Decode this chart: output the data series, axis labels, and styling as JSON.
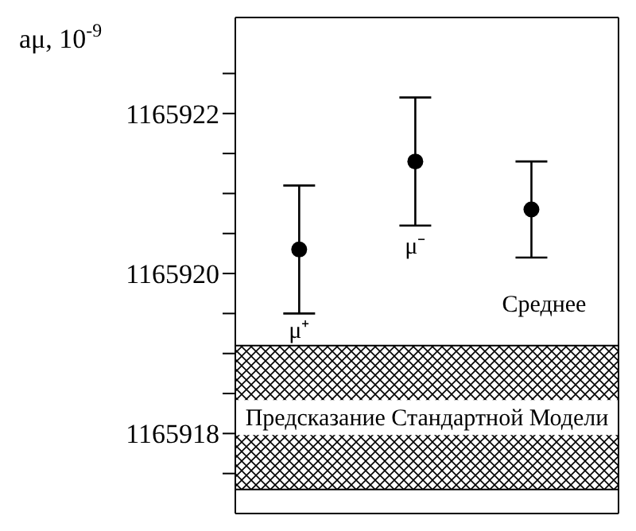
{
  "chart_data": {
    "type": "scatter",
    "ylabel": "aμ, 10$^{-9}$",
    "categories": [
      "μ⁺",
      "μ⁻",
      "Среднее"
    ],
    "values": [
      1165920.3,
      1165921.4,
      1165920.8
    ],
    "errors": [
      0.8,
      0.8,
      0.6
    ],
    "color": "#000000",
    "marker": "circle",
    "ylim": [
      1165917,
      1165923.2
    ],
    "yticks": [
      {
        "value": 1165917.5,
        "label": null
      },
      1165918,
      {
        "value": 1165918.5,
        "label": null
      },
      {
        "value": 1165919,
        "label": null
      },
      {
        "value": 1165919.5,
        "label": null
      },
      1165920,
      {
        "value": 1165920.5,
        "label": null
      },
      {
        "value": 1165921,
        "label": null
      },
      {
        "value": 1165921.5,
        "label": null
      },
      1165922,
      {
        "value": 1165922.5,
        "label": null
      }
    ],
    "bands": [
      {
        "axis": "y",
        "from": 1165917.3,
        "to": 1165919.1,
        "label": "Предсказание Стандартной Модели"
      }
    ],
    "tick_labels": "y"
  }
}
